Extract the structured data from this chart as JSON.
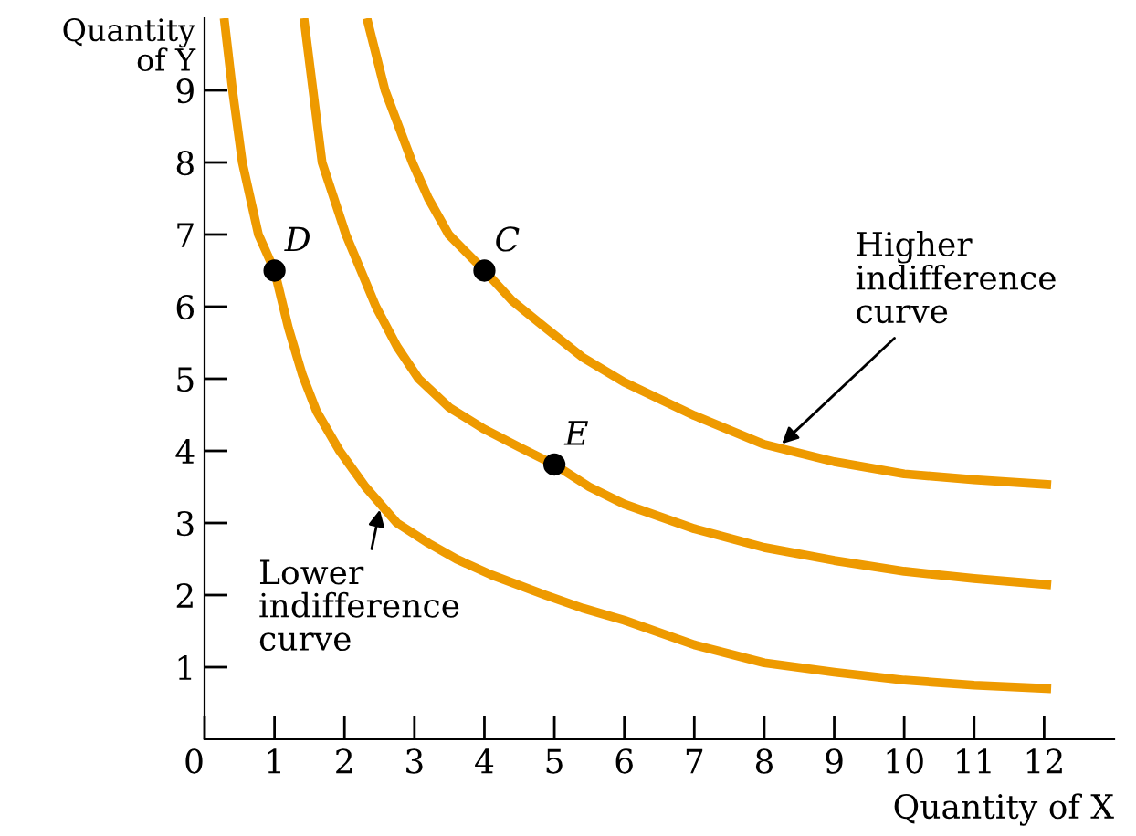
{
  "chart_data": {
    "type": "line",
    "xlabel": "Quantity of X",
    "ylabel": "Quantity\nof Y",
    "xlim": [
      0,
      13
    ],
    "ylim": [
      0,
      10
    ],
    "xticks": [
      {
        "value": 0,
        "label": "0"
      },
      1,
      2,
      3,
      4,
      5,
      6,
      7,
      8,
      9,
      10,
      11,
      12
    ],
    "yticks": [
      1,
      2,
      3,
      4,
      5,
      6,
      7,
      8,
      9
    ],
    "grid": false,
    "legend": false,
    "marker": "none",
    "line_style": "solid",
    "series": [
      {
        "color": "#ee9a00",
        "x": [
          0.28,
          0.4,
          0.54,
          0.77,
          1,
          1.2,
          1.4,
          1.6,
          1.93,
          2.3,
          2.75,
          3.2,
          3.6,
          4.1,
          4.87,
          5.4,
          6,
          7,
          8,
          9,
          10,
          11,
          12.1
        ],
        "values": [
          10,
          9,
          8,
          7,
          6.5,
          5.7,
          5.05,
          4.55,
          4,
          3.5,
          3,
          2.72,
          2.5,
          2.28,
          2,
          1.82,
          1.65,
          1.31,
          1.06,
          0.93,
          0.82,
          0.75,
          0.7
        ]
      },
      {
        "color": "#ee9a00",
        "x": [
          1.42,
          1.55,
          1.68,
          2.02,
          2.45,
          2.75,
          3.06,
          3.5,
          4,
          4.5,
          5,
          5.5,
          6,
          7,
          8,
          9,
          10,
          11,
          12.1
        ],
        "values": [
          10,
          9,
          8,
          7,
          6,
          5.45,
          5,
          4.6,
          4.3,
          4.05,
          3.81,
          3.5,
          3.26,
          2.92,
          2.66,
          2.48,
          2.33,
          2.23,
          2.14
        ]
      },
      {
        "color": "#ee9a00",
        "x": [
          2.32,
          2.58,
          2.97,
          3.2,
          3.49,
          4,
          4.4,
          4.87,
          5.4,
          6,
          7,
          8,
          9,
          10,
          11,
          12.1
        ],
        "values": [
          10,
          9,
          8,
          7.5,
          7,
          6.5,
          6.08,
          5.71,
          5.3,
          4.95,
          4.49,
          4.09,
          3.85,
          3.68,
          3.6,
          3.53
        ]
      },
      {
        "type": "scatter",
        "name": "D",
        "color": "#000000",
        "marker": "circle",
        "x": [
          1
        ],
        "values": [
          6.5
        ]
      },
      {
        "type": "scatter",
        "name": "C",
        "color": "#000000",
        "marker": "circle",
        "x": [
          4
        ],
        "values": [
          6.5
        ]
      },
      {
        "type": "scatter",
        "name": "E",
        "color": "#000000",
        "marker": "circle",
        "x": [
          5
        ],
        "values": [
          3.81
        ]
      }
    ],
    "annotations": [
      {
        "text": "Lower\nindifference\ncurve",
        "x": 2.52,
        "y": 3.25
      },
      {
        "text": "Higher\nindifference\ncurve",
        "x": 8.2,
        "y": 4.05
      }
    ]
  }
}
